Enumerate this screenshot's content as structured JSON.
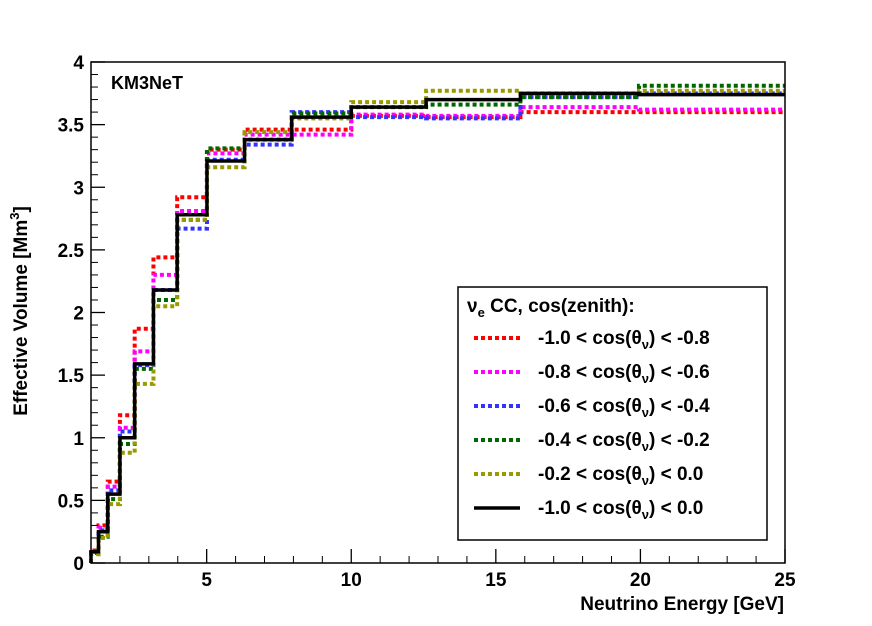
{
  "chart_data": {
    "type": "line",
    "step": true,
    "title": "",
    "annotation": "KM3NeT",
    "xlabel": "Neutrino Energy [GeV]",
    "ylabel": "Effective Volume [Mm",
    "ylabel_sup": "3",
    "ylabel_close": "]",
    "xlim": [
      1,
      25
    ],
    "ylim": [
      0,
      4
    ],
    "xticks": [
      5,
      10,
      15,
      20,
      25
    ],
    "xtick_labels": [
      "5",
      "10",
      "15",
      "20",
      "25"
    ],
    "yticks": [
      0,
      0.5,
      1,
      1.5,
      2,
      2.5,
      3,
      3.5,
      4
    ],
    "ytick_labels": [
      "0",
      "0.5",
      "1",
      "1.5",
      "2",
      "2.5",
      "3",
      "3.5",
      "4"
    ],
    "bin_edges": [
      1,
      1.26,
      1.58,
      2.0,
      2.51,
      3.16,
      3.98,
      5.01,
      6.31,
      7.94,
      10.0,
      12.59,
      15.85,
      19.95,
      25.12
    ],
    "legend": {
      "header_main": "ν",
      "header_sub": "e",
      "header_rest": " CC, cos(zenith):",
      "position": "lower-right"
    },
    "series": [
      {
        "name": "-1.0 < cos(θν) < -0.8",
        "pre": "-1.0 < cos(θ",
        "sub": "ν",
        "post": ") < -0.8",
        "color": "#ff0000",
        "dashed": true,
        "values": [
          0.1,
          0.3,
          0.65,
          1.18,
          1.87,
          2.44,
          2.92,
          3.3,
          3.46,
          3.46,
          3.57,
          3.56,
          3.6,
          3.6
        ]
      },
      {
        "name": "-0.8 < cos(θν) < -0.6",
        "pre": "-0.8 < cos(θ",
        "sub": "ν",
        "post": ") < -0.6",
        "color": "#ff00ff",
        "dashed": true,
        "values": [
          0.09,
          0.28,
          0.61,
          1.08,
          1.69,
          2.3,
          2.81,
          3.27,
          3.42,
          3.42,
          3.58,
          3.57,
          3.64,
          3.62
        ]
      },
      {
        "name": "-0.6 < cos(θν) < -0.4",
        "pre": "-0.6 < cos(θ",
        "sub": "ν",
        "post": ") < -0.4",
        "color": "#3333ff",
        "dashed": true,
        "values": [
          0.09,
          0.26,
          0.58,
          1.05,
          1.58,
          2.18,
          2.67,
          3.22,
          3.34,
          3.6,
          3.56,
          3.55,
          3.72,
          3.75
        ]
      },
      {
        "name": "-0.4 < cos(θν) < -0.2",
        "pre": "-0.4 < cos(θ",
        "sub": "ν",
        "post": ") < -0.2",
        "color": "#006600",
        "dashed": true,
        "values": [
          0.08,
          0.21,
          0.51,
          0.95,
          1.55,
          2.1,
          2.74,
          3.31,
          3.38,
          3.59,
          3.64,
          3.66,
          3.72,
          3.81
        ]
      },
      {
        "name": "-0.2 < cos(θν) < 0.0",
        "pre": "-0.2 < cos(θ",
        "sub": "ν",
        "post": ") < 0.0",
        "color": "#999900",
        "dashed": true,
        "values": [
          0.07,
          0.2,
          0.47,
          0.88,
          1.43,
          2.05,
          2.74,
          3.16,
          3.44,
          3.55,
          3.68,
          3.77,
          3.75,
          3.77
        ]
      },
      {
        "name": "-1.0 < cos(θν) < 0.0",
        "pre": "-1.0 < cos(θ",
        "sub": "ν",
        "post": ") < 0.0",
        "color": "#000000",
        "dashed": false,
        "values": [
          0.09,
          0.25,
          0.55,
          1.0,
          1.59,
          2.18,
          2.78,
          3.21,
          3.38,
          3.56,
          3.64,
          3.7,
          3.75,
          3.74
        ]
      }
    ]
  }
}
